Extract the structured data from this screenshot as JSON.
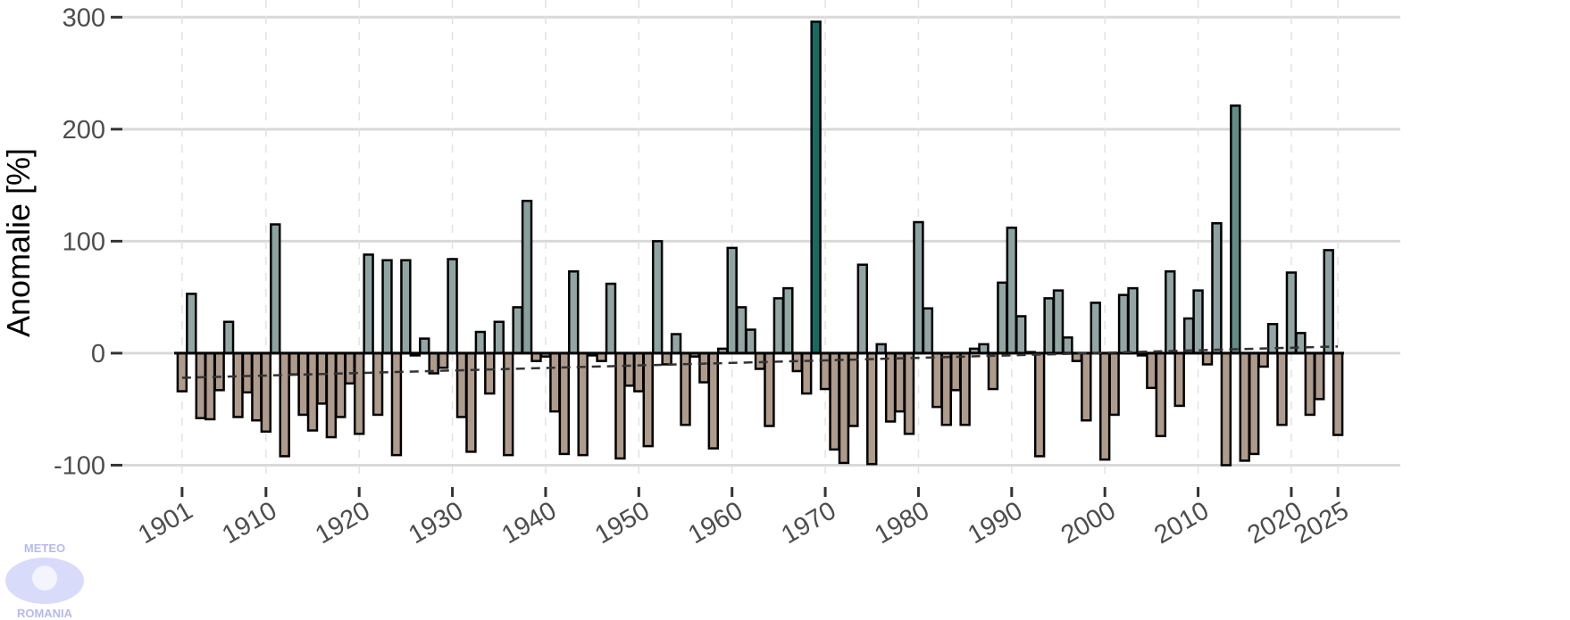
{
  "chart_data": {
    "type": "bar",
    "ylabel": "Anomalie [%]",
    "logo": [
      "METEO",
      "ROMANIA"
    ],
    "x": [
      1901,
      1902,
      1903,
      1904,
      1905,
      1906,
      1907,
      1908,
      1909,
      1910,
      1911,
      1912,
      1913,
      1914,
      1915,
      1916,
      1917,
      1918,
      1919,
      1920,
      1921,
      1922,
      1923,
      1924,
      1925,
      1926,
      1927,
      1928,
      1929,
      1930,
      1931,
      1932,
      1933,
      1934,
      1935,
      1936,
      1937,
      1938,
      1939,
      1940,
      1941,
      1942,
      1943,
      1944,
      1945,
      1946,
      1947,
      1948,
      1949,
      1950,
      1951,
      1952,
      1953,
      1954,
      1955,
      1956,
      1957,
      1958,
      1959,
      1960,
      1961,
      1962,
      1963,
      1964,
      1965,
      1966,
      1967,
      1968,
      1969,
      1970,
      1971,
      1972,
      1973,
      1974,
      1975,
      1976,
      1977,
      1978,
      1979,
      1980,
      1981,
      1982,
      1983,
      1984,
      1985,
      1986,
      1987,
      1988,
      1989,
      1990,
      1991,
      1992,
      1993,
      1994,
      1995,
      1996,
      1997,
      1998,
      1999,
      2000,
      2001,
      2002,
      2003,
      2004,
      2005,
      2006,
      2007,
      2008,
      2009,
      2010,
      2011,
      2012,
      2013,
      2014,
      2015,
      2016,
      2017,
      2018,
      2019,
      2020,
      2021,
      2022,
      2023,
      2024,
      2025
    ],
    "values": [
      -34,
      53,
      -58,
      -59,
      -33,
      28,
      -57,
      -35,
      -60,
      -70,
      115,
      -92,
      -19,
      -55,
      -69,
      -45,
      -75,
      -57,
      -27,
      -72,
      88,
      -55,
      83,
      -91,
      83,
      -2,
      13,
      -18,
      -13,
      84,
      -57,
      -88,
      19,
      -36,
      28,
      -91,
      41,
      136,
      -7,
      -3,
      -52,
      -90,
      73,
      -91,
      -2,
      -7,
      62,
      -94,
      -29,
      -34,
      -83,
      100,
      -10,
      17,
      -64,
      -3,
      -26,
      -85,
      4,
      94,
      41,
      21,
      -14,
      -65,
      49,
      58,
      -16,
      -36,
      296,
      -32,
      -86,
      -98,
      -65,
      79,
      -99,
      8,
      -61,
      -52,
      -72,
      117,
      40,
      -48,
      -64,
      -33,
      -64,
      4,
      8,
      -32,
      63,
      112,
      33,
      1,
      -92,
      49,
      56,
      14,
      -7,
      -60,
      45,
      -95,
      -55,
      52,
      58,
      -2,
      -31,
      -74,
      73,
      -47,
      31,
      56,
      -10,
      116,
      -100,
      221,
      -96,
      -90,
      -12,
      26,
      -64,
      72,
      18,
      -55,
      -41,
      92,
      -73
    ],
    "colors": {
      "positive": "#93a6a4",
      "extreme": "#0c655c",
      "negative": "#ae9b8b"
    },
    "trend": {
      "x": [
        1901,
        2025
      ],
      "values": [
        -22,
        6
      ],
      "color": "#333333"
    },
    "xlim": [
      1899,
      2027
    ],
    "xticks": [
      1901,
      1910,
      1920,
      1930,
      1940,
      1950,
      1960,
      1970,
      1980,
      1990,
      2000,
      2010,
      2020,
      2025
    ],
    "ylim": [
      -110,
      305
    ],
    "yticks": [
      -100,
      0,
      100,
      200,
      300
    ],
    "grid": true
  }
}
